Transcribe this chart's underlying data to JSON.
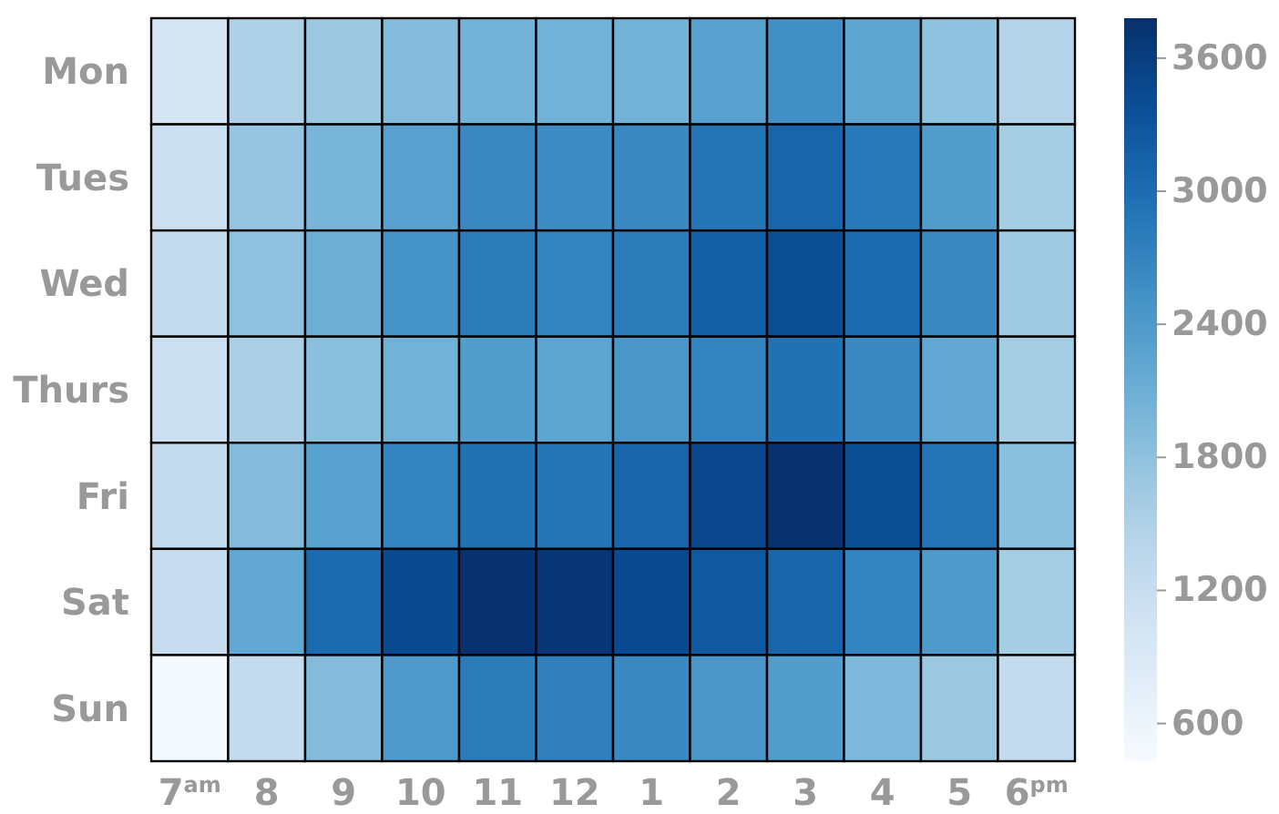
{
  "chart_data": {
    "type": "heatmap",
    "categories": [
      "7$^{am}$",
      "8",
      "9",
      "10",
      "11",
      "12",
      "1",
      "2",
      "3",
      "4",
      "5",
      "6$^{pm}$"
    ],
    "y_categories": [
      "Mon",
      "Tues",
      "Wed",
      "Thurs",
      "Fri",
      "Sat",
      "Sun"
    ],
    "cells": [
      [
        1000,
        1500,
        1700,
        1900,
        2050,
        2050,
        2050,
        2300,
        2550,
        2250,
        1800,
        1450
      ],
      [
        1150,
        1750,
        2000,
        2300,
        2650,
        2600,
        2650,
        2900,
        3100,
        2850,
        2350,
        1600
      ],
      [
        1250,
        1800,
        2100,
        2500,
        2800,
        2700,
        2800,
        3150,
        3400,
        3050,
        2650,
        1650
      ],
      [
        1150,
        1550,
        1850,
        2050,
        2350,
        2250,
        2450,
        2700,
        2950,
        2650,
        2200,
        1600
      ],
      [
        1250,
        1900,
        2300,
        2700,
        2950,
        2900,
        3100,
        3500,
        3750,
        3400,
        2900,
        1850
      ],
      [
        1200,
        2200,
        3050,
        3450,
        3750,
        3700,
        3450,
        3250,
        3100,
        2700,
        2400,
        1600
      ],
      [
        480,
        1250,
        1900,
        2400,
        2800,
        2750,
        2650,
        2450,
        2350,
        1950,
        1700,
        1250
      ]
    ],
    "clim": [
      430,
      3780
    ],
    "cticks": [
      600,
      1200,
      1800,
      2400,
      3000,
      3600
    ]
  }
}
